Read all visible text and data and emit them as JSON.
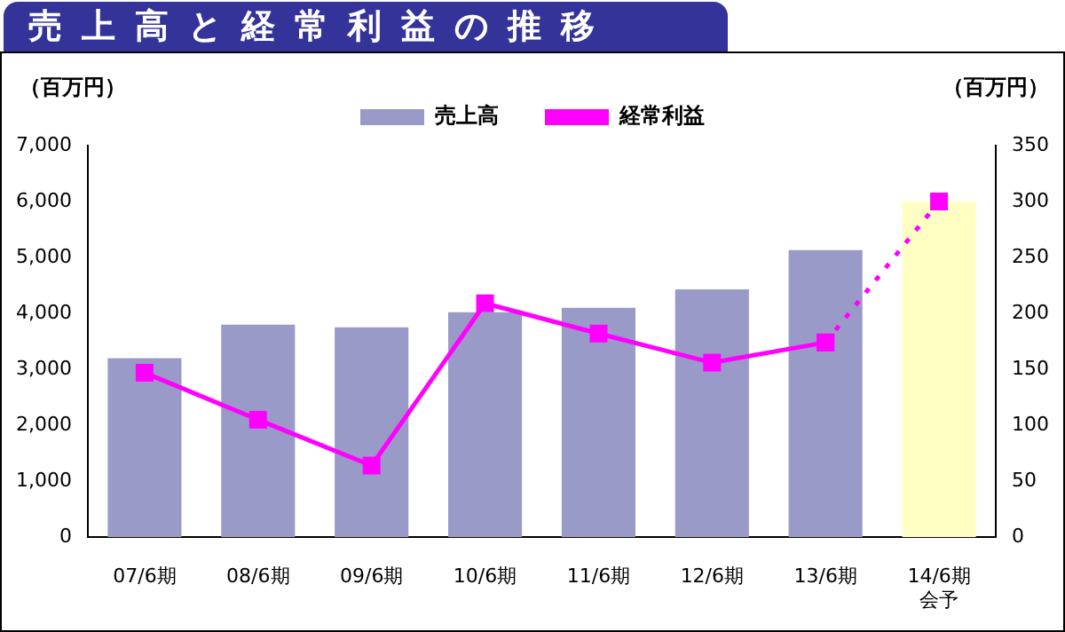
{
  "chart_data": {
    "type": "bar",
    "title": "売上高と経常利益の推移",
    "ylabel": "（百万円）",
    "y2label": "（百万円）",
    "categories": [
      "07/6期",
      "08/6期",
      "09/6期",
      "10/6期",
      "11/6期",
      "12/6期",
      "13/6期",
      "14/6期会予"
    ],
    "series": [
      {
        "name": "売上高",
        "color": "#9a9ac8",
        "colors": [
          "#9a9ac8",
          "#9a9ac8",
          "#9a9ac8",
          "#9a9ac8",
          "#9a9ac8",
          "#9a9ac8",
          "#9a9ac8",
          "#ffffc4"
        ],
        "values": [
          3200,
          3800,
          3750,
          4020,
          4100,
          4430,
          5130,
          6000
        ]
      },
      {
        "name": "経常利益",
        "type": "line",
        "axis": "y2",
        "color": "#ff00ff",
        "marker": "square",
        "line_style": "solid",
        "values": [
          147,
          105,
          64,
          209,
          182,
          156,
          174,
          null
        ]
      },
      {
        "type": "line",
        "axis": "y2",
        "color": "#ff00ff",
        "marker": "square",
        "line_style": "dotted",
        "values": [
          null,
          null,
          null,
          null,
          null,
          null,
          174,
          300
        ]
      }
    ],
    "ylim": [
      0,
      7000
    ],
    "yticks": [
      0,
      {
        "value": 1000,
        "label": "1,000"
      },
      {
        "value": 2000,
        "label": "2,000"
      },
      {
        "value": 3000,
        "label": "3,000"
      },
      {
        "value": 4000,
        "label": "4,000"
      },
      {
        "value": 5000,
        "label": "5,000"
      },
      {
        "value": 6000,
        "label": "6,000"
      },
      {
        "value": 7000,
        "label": "7,000"
      }
    ],
    "y2lim": [
      0,
      350
    ],
    "y2ticks": [
      0,
      50,
      100,
      150,
      200,
      250,
      300,
      350
    ],
    "grid": false,
    "legend": "top"
  }
}
